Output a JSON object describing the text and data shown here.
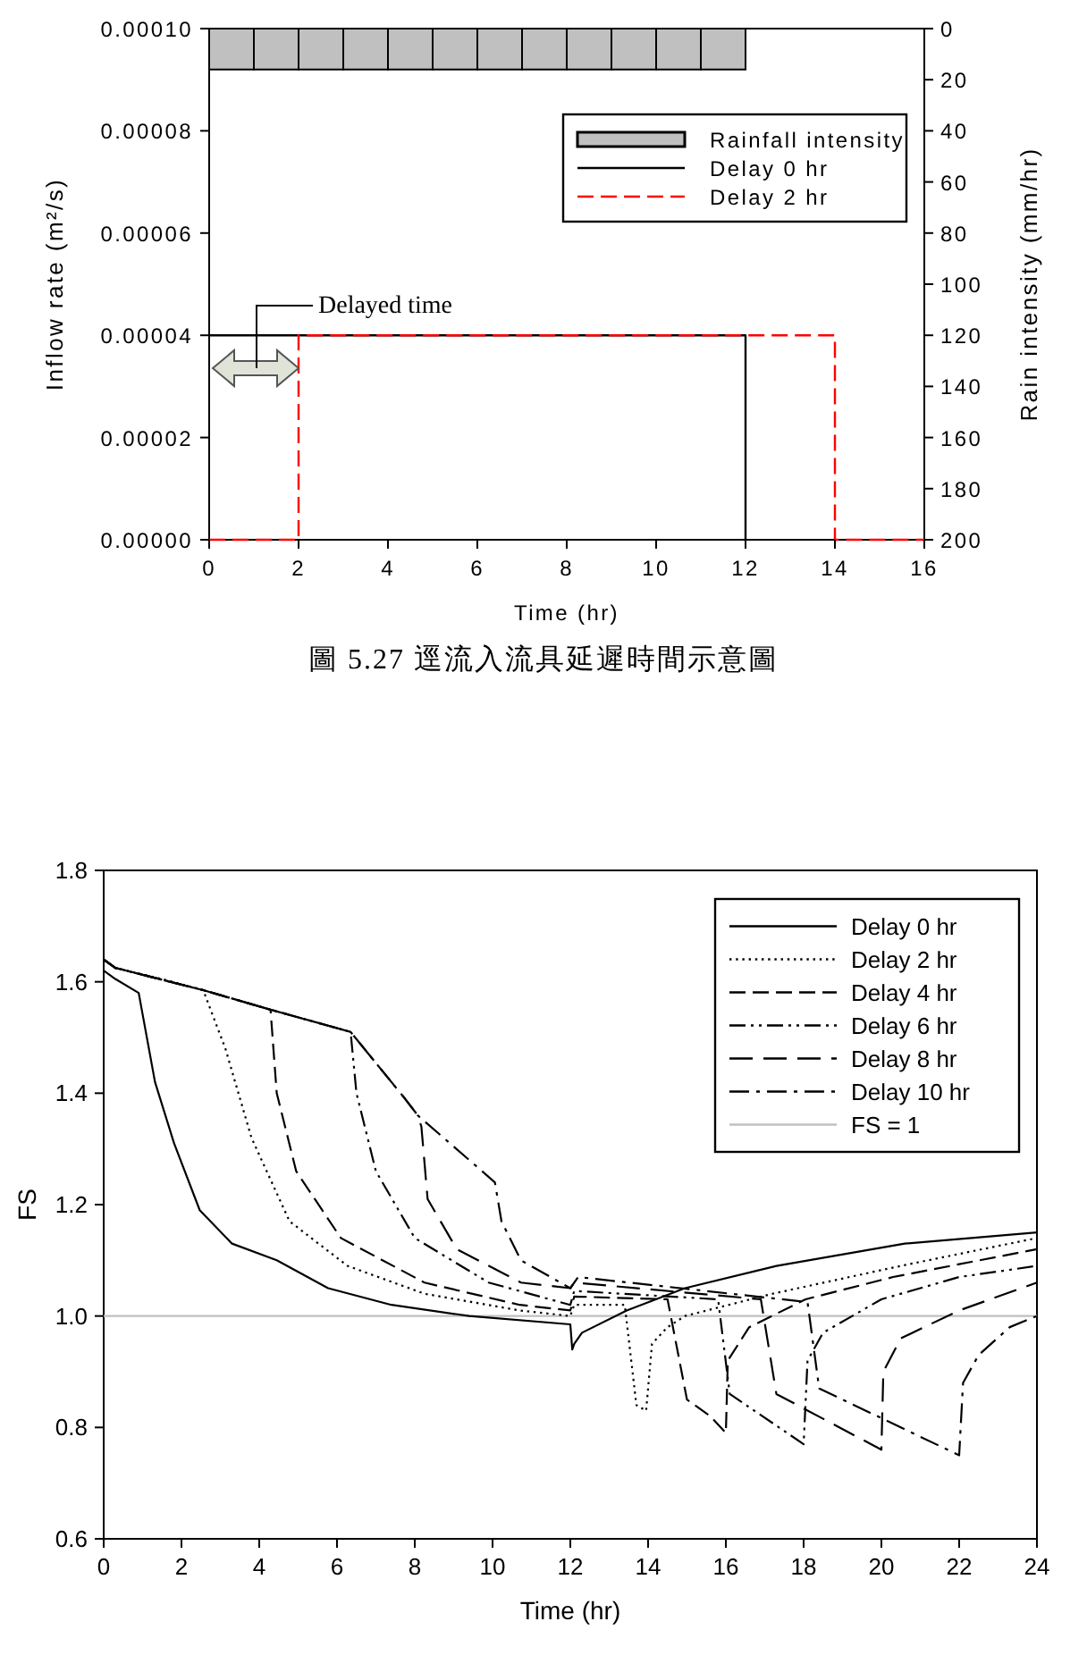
{
  "chart_data": [
    {
      "type": "line",
      "xlabel": "Time (hr)",
      "ylabel": "Inflow rate (m²/s)",
      "y2label": "Rain intensity (mm/hr)",
      "xlim": [
        0,
        16
      ],
      "xticks": [
        0,
        2,
        4,
        6,
        8,
        10,
        12,
        14,
        16
      ],
      "ylim": [
        0,
        0.0001
      ],
      "yticks": [
        {
          "value": 0,
          "label": "0.00000"
        },
        {
          "value": 2e-05,
          "label": "0.00002"
        },
        {
          "value": 4e-05,
          "label": "0.00004"
        },
        {
          "value": 6e-05,
          "label": "0.00006"
        },
        {
          "value": 8e-05,
          "label": "0.00008"
        },
        {
          "value": 0.0001,
          "label": "0.00010"
        }
      ],
      "y2lim": [
        200,
        0
      ],
      "y2ticks": [
        0,
        20,
        40,
        60,
        80,
        100,
        120,
        140,
        160,
        180,
        200
      ],
      "legend": "top right",
      "annotations": [
        "Delayed time",
        "圖 5.27 逕流入流具延遲時間示意圖"
      ],
      "series": [
        {
          "name": "Rainfall intensity",
          "type": "bar",
          "axis": "y2",
          "color": "#c0c0c0",
          "x": [
            0.5,
            1.5,
            2.5,
            3.5,
            4.5,
            5.5,
            6.5,
            7.5,
            8.5,
            9.5,
            10.5,
            11.5
          ],
          "values": [
            16,
            16,
            16,
            16,
            16,
            16,
            16,
            16,
            16,
            16,
            16,
            16
          ]
        },
        {
          "name": "Delay 0 hr",
          "line_style": "solid",
          "color": "#000000",
          "x": [
            0,
            12,
            12
          ],
          "values": [
            4e-05,
            4e-05,
            0
          ]
        },
        {
          "name": "Delay 2 hr",
          "line_style": "dashed",
          "color": "#ff0000",
          "x": [
            0,
            2,
            2,
            14,
            14,
            16
          ],
          "values": [
            0,
            0,
            4e-05,
            4e-05,
            0,
            0
          ]
        }
      ]
    },
    {
      "type": "line",
      "xlabel": "Time (hr)",
      "ylabel": "FS",
      "xlim": [
        0,
        24
      ],
      "xticks": [
        0,
        2,
        4,
        6,
        8,
        10,
        12,
        14,
        16,
        18,
        20,
        22,
        24
      ],
      "ylim": [
        0.6,
        1.8
      ],
      "yticks": [
        0.6,
        0.8,
        {
          "value": 1,
          "label": "1.0"
        },
        1.2,
        1.4,
        1.6,
        1.8
      ],
      "legend": "top right",
      "ref_lines": [
        {
          "axis": "y",
          "value": 1,
          "label": "FS = 1",
          "color": "#c0c0c0"
        }
      ],
      "series": [
        {
          "name": "Delay 0 hr",
          "line_style": "solid",
          "color": "#000000",
          "x": [
            0,
            0.3,
            0.9,
            1.32,
            1.81,
            2.47,
            3.3,
            4.45,
            5.77,
            7.4,
            9.4,
            12,
            12.05,
            12.1,
            12.3,
            13.45,
            14.95,
            17.3,
            20.6,
            24
          ],
          "values": [
            1.62,
            1.605,
            1.58,
            1.42,
            1.31,
            1.19,
            1.13,
            1.1,
            1.05,
            1.02,
            1.0,
            0.985,
            0.94,
            0.95,
            0.97,
            1.01,
            1.05,
            1.09,
            1.13,
            1.15
          ]
        },
        {
          "name": "Delay 2 hr",
          "line_style": "dotted",
          "color": "#000000",
          "x": [
            0,
            0.3,
            1.5,
            2.56,
            3.13,
            3.8,
            4.78,
            6.27,
            8.25,
            10.7,
            12,
            12.1,
            13.4,
            13.7,
            13.95,
            14.1,
            14.5,
            14.95,
            17.2,
            20.5,
            24
          ],
          "values": [
            1.64,
            1.625,
            1.605,
            1.585,
            1.48,
            1.32,
            1.17,
            1.09,
            1.04,
            1.01,
            1.0,
            1.02,
            1.02,
            0.84,
            0.83,
            0.95,
            0.98,
            1.0,
            1.04,
            1.09,
            1.14
          ]
        },
        {
          "name": "Delay 4 hr",
          "line_style": "dashed",
          "color": "#000000",
          "x": [
            0,
            0.3,
            2.56,
            4.29,
            4.45,
            4.95,
            6.1,
            8.25,
            10.7,
            12,
            12.1,
            14.5,
            15.0,
            15.6,
            16.0,
            16.05,
            16.6,
            18.05,
            20.3,
            24
          ],
          "values": [
            1.64,
            1.625,
            1.585,
            1.55,
            1.4,
            1.26,
            1.14,
            1.06,
            1.02,
            1.01,
            1.035,
            1.03,
            0.85,
            0.82,
            0.79,
            0.92,
            0.98,
            1.03,
            1.07,
            1.12
          ]
        },
        {
          "name": "Delay 6 hr",
          "line_style": "dashed",
          "color": "#000000",
          "x": [
            0,
            0.3,
            2.56,
            4.29,
            6.35,
            6.5,
            7.0,
            8.0,
            9.9,
            12,
            12.1,
            15.8,
            16.1,
            18.0,
            18.1,
            18.5,
            20,
            22,
            24
          ],
          "values": [
            1.64,
            1.625,
            1.585,
            1.55,
            1.51,
            1.4,
            1.26,
            1.14,
            1.06,
            1.02,
            1.045,
            1.03,
            0.86,
            0.77,
            0.92,
            0.97,
            1.03,
            1.07,
            1.09
          ]
        },
        {
          "name": "Delay 8 hr",
          "line_style": "dashed",
          "color": "#000000",
          "x": [
            0,
            0.3,
            2.56,
            4.29,
            6.35,
            7.75,
            8.08,
            8.17,
            8.33,
            9.08,
            10.73,
            12,
            12.1,
            16.9,
            17.3,
            20,
            20.05,
            20.5,
            22,
            24
          ],
          "values": [
            1.64,
            1.625,
            1.585,
            1.55,
            1.51,
            1.39,
            1.36,
            1.34,
            1.21,
            1.12,
            1.06,
            1.05,
            1.06,
            1.03,
            0.86,
            0.76,
            0.9,
            0.96,
            1.01,
            1.06
          ]
        },
        {
          "name": "Delay 10 hr",
          "line_style": "dashed",
          "color": "#000000",
          "x": [
            0,
            0.3,
            2.56,
            4.29,
            6.35,
            7.75,
            8.08,
            10.06,
            10.23,
            10.73,
            12,
            12.2,
            18.1,
            18.4,
            22,
            22.1,
            22.5,
            23.3,
            24
          ],
          "values": [
            1.64,
            1.625,
            1.585,
            1.55,
            1.51,
            1.39,
            1.36,
            1.24,
            1.17,
            1.1,
            1.05,
            1.07,
            1.025,
            0.87,
            0.75,
            0.88,
            0.93,
            0.98,
            1.0
          ]
        }
      ]
    }
  ]
}
